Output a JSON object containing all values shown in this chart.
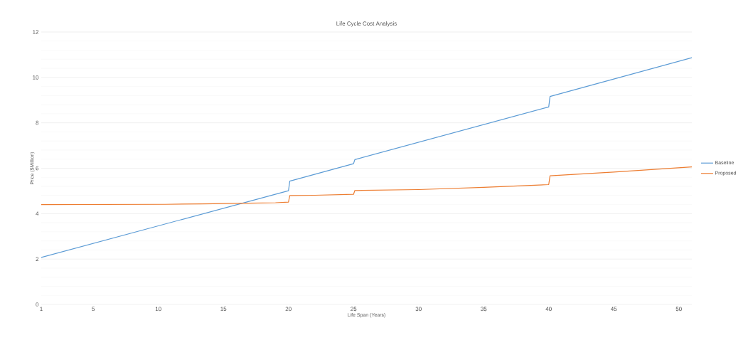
{
  "chart_data": {
    "type": "line",
    "title": "Life Cycle Cost Analysis",
    "xlabel": "Life Span (Years)",
    "ylabel": "Price ($Million)",
    "xlim": [
      1,
      51
    ],
    "xticks": [
      1,
      5,
      10,
      15,
      20,
      25,
      30,
      35,
      40,
      45,
      50
    ],
    "ylim": [
      0,
      12
    ],
    "yticks": [
      0,
      2,
      4,
      6,
      8,
      10,
      12
    ],
    "grid": "y",
    "legend": "right",
    "line_style": "solid",
    "series": [
      {
        "name": "Baseline",
        "color": "#5b9bd5",
        "x": [
          1,
          20,
          20.1,
          25,
          25.1,
          40,
          40.1,
          51
        ],
        "values": [
          2.07,
          5.01,
          5.43,
          6.2,
          6.38,
          8.7,
          9.16,
          10.87
        ]
      },
      {
        "name": "Proposed",
        "color": "#ed7d31",
        "x": [
          1,
          10.5,
          13.3,
          17,
          19,
          20,
          20.1,
          22,
          25,
          25.1,
          30,
          35,
          40,
          40.1,
          45,
          51
        ],
        "values": [
          4.4,
          4.41,
          4.43,
          4.46,
          4.48,
          4.51,
          4.8,
          4.81,
          4.85,
          5.02,
          5.06,
          5.16,
          5.28,
          5.67,
          5.83,
          6.06
        ]
      }
    ]
  }
}
